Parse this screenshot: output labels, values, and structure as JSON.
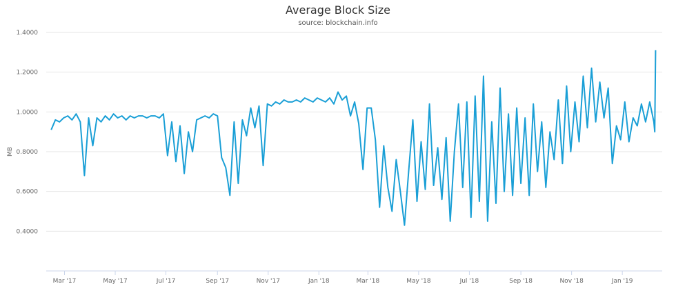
{
  "chart_data": {
    "type": "line",
    "title": "Average Block Size",
    "subtitle": "source: blockchain.info",
    "xlabel": "",
    "ylabel": "MB",
    "ylim": [
      0.2,
      1.4
    ],
    "xlim": [
      "2017-02-07",
      "2019-02-18"
    ],
    "yticks": [
      0.4,
      0.6,
      0.8,
      1.0,
      1.2,
      1.4
    ],
    "ytick_labels": [
      "0.4000",
      "0.6000",
      "0.8000",
      "1.0000",
      "1.2000",
      "1.4000"
    ],
    "xticks": [
      "2017-03-01",
      "2017-05-01",
      "2017-07-01",
      "2017-09-01",
      "2017-11-01",
      "2018-01-01",
      "2018-03-01",
      "2018-05-01",
      "2018-07-01",
      "2018-09-01",
      "2018-11-01",
      "2019-01-01"
    ],
    "xtick_labels": [
      "Mar '17",
      "May '17",
      "Jul '17",
      "Sep '17",
      "Nov '17",
      "Jan '18",
      "Mar '18",
      "May '18",
      "Jul '18",
      "Sep '18",
      "Nov '18",
      "Jan '19"
    ],
    "grid": true,
    "legend": "none",
    "line_color": "#1a9fd6",
    "x": [
      "2017-02-13",
      "2017-02-18",
      "2017-02-23",
      "2017-02-28",
      "2017-03-05",
      "2017-03-10",
      "2017-03-15",
      "2017-03-20",
      "2017-03-25",
      "2017-03-30",
      "2017-04-04",
      "2017-04-09",
      "2017-04-14",
      "2017-04-19",
      "2017-04-24",
      "2017-04-29",
      "2017-05-04",
      "2017-05-09",
      "2017-05-14",
      "2017-05-19",
      "2017-05-24",
      "2017-05-29",
      "2017-06-03",
      "2017-06-08",
      "2017-06-13",
      "2017-06-18",
      "2017-06-23",
      "2017-06-28",
      "2017-07-03",
      "2017-07-08",
      "2017-07-13",
      "2017-07-18",
      "2017-07-23",
      "2017-07-28",
      "2017-08-02",
      "2017-08-07",
      "2017-08-12",
      "2017-08-17",
      "2017-08-22",
      "2017-08-27",
      "2017-09-01",
      "2017-09-06",
      "2017-09-11",
      "2017-09-16",
      "2017-09-21",
      "2017-09-26",
      "2017-10-01",
      "2017-10-06",
      "2017-10-11",
      "2017-10-16",
      "2017-10-21",
      "2017-10-26",
      "2017-10-31",
      "2017-11-05",
      "2017-11-10",
      "2017-11-15",
      "2017-11-20",
      "2017-11-25",
      "2017-11-30",
      "2017-12-05",
      "2017-12-10",
      "2017-12-15",
      "2017-12-20",
      "2017-12-25",
      "2017-12-30",
      "2018-01-04",
      "2018-01-09",
      "2018-01-14",
      "2018-01-19",
      "2018-01-24",
      "2018-01-29",
      "2018-02-03",
      "2018-02-08",
      "2018-02-13",
      "2018-02-18",
      "2018-02-23",
      "2018-02-28",
      "2018-03-05",
      "2018-03-10",
      "2018-03-15",
      "2018-03-20",
      "2018-03-25",
      "2018-03-30",
      "2018-04-04",
      "2018-04-09",
      "2018-04-14",
      "2018-04-19",
      "2018-04-24",
      "2018-04-29",
      "2018-05-04",
      "2018-05-09",
      "2018-05-14",
      "2018-05-19",
      "2018-05-24",
      "2018-05-29",
      "2018-06-03",
      "2018-06-08",
      "2018-06-13",
      "2018-06-18",
      "2018-06-23",
      "2018-06-28",
      "2018-07-03",
      "2018-07-08",
      "2018-07-13",
      "2018-07-18",
      "2018-07-23",
      "2018-07-28",
      "2018-08-02",
      "2018-08-07",
      "2018-08-12",
      "2018-08-17",
      "2018-08-22",
      "2018-08-27",
      "2018-09-01",
      "2018-09-06",
      "2018-09-11",
      "2018-09-16",
      "2018-09-21",
      "2018-09-26",
      "2018-10-01",
      "2018-10-06",
      "2018-10-11",
      "2018-10-16",
      "2018-10-21",
      "2018-10-26",
      "2018-10-31",
      "2018-11-05",
      "2018-11-10",
      "2018-11-15",
      "2018-11-20",
      "2018-11-25",
      "2018-11-30",
      "2018-12-05",
      "2018-12-10",
      "2018-12-15",
      "2018-12-20",
      "2018-12-25",
      "2018-12-30",
      "2019-01-04",
      "2019-01-09",
      "2019-01-14",
      "2019-01-19",
      "2019-01-24",
      "2019-01-29",
      "2019-02-03",
      "2019-02-08",
      "2019-02-09",
      "2019-02-10"
    ],
    "y": [
      0.91,
      0.96,
      0.95,
      0.97,
      0.98,
      0.96,
      0.99,
      0.95,
      0.68,
      0.97,
      0.83,
      0.97,
      0.95,
      0.98,
      0.96,
      0.99,
      0.97,
      0.98,
      0.96,
      0.98,
      0.97,
      0.98,
      0.98,
      0.97,
      0.98,
      0.98,
      0.97,
      0.99,
      0.78,
      0.95,
      0.75,
      0.93,
      0.69,
      0.9,
      0.8,
      0.96,
      0.97,
      0.98,
      0.97,
      0.99,
      0.98,
      0.77,
      0.72,
      0.58,
      0.95,
      0.64,
      0.96,
      0.88,
      1.02,
      0.92,
      1.03,
      0.73,
      1.04,
      1.03,
      1.05,
      1.04,
      1.06,
      1.05,
      1.05,
      1.06,
      1.05,
      1.07,
      1.06,
      1.05,
      1.07,
      1.06,
      1.05,
      1.07,
      1.04,
      1.1,
      1.06,
      1.08,
      0.98,
      1.05,
      0.94,
      0.71,
      1.02,
      1.02,
      0.86,
      0.52,
      0.83,
      0.62,
      0.5,
      0.76,
      0.6,
      0.43,
      0.7,
      0.96,
      0.55,
      0.85,
      0.61,
      1.04,
      0.63,
      0.82,
      0.56,
      0.87,
      0.45,
      0.8,
      1.04,
      0.62,
      1.05,
      0.47,
      1.08,
      0.55,
      1.18,
      0.45,
      0.95,
      0.54,
      1.12,
      0.6,
      0.99,
      0.58,
      1.02,
      0.64,
      0.97,
      0.58,
      1.04,
      0.7,
      0.95,
      0.62,
      0.9,
      0.76,
      1.06,
      0.74,
      1.13,
      0.8,
      1.05,
      0.85,
      1.18,
      0.92,
      1.22,
      0.95,
      1.15,
      0.97,
      1.12,
      0.74,
      0.93,
      0.86,
      1.05,
      0.85,
      0.97,
      0.93,
      1.04,
      0.95,
      1.05,
      0.95,
      0.9,
      1.31
    ]
  }
}
